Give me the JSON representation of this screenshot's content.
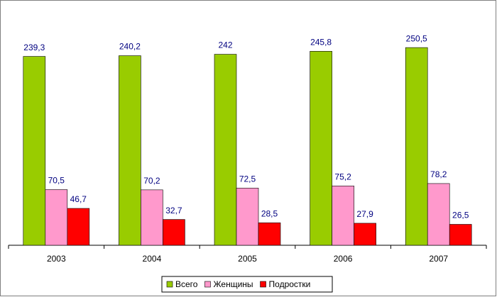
{
  "chart_data": {
    "type": "bar",
    "categories": [
      "2003",
      "2004",
      "2005",
      "2006",
      "2007"
    ],
    "series": [
      {
        "name": "Всего",
        "color": "#99cc00",
        "values": [
          239.3,
          240.2,
          242,
          245.8,
          250.5
        ],
        "value_labels": [
          "239,3",
          "240,2",
          "242",
          "245,8",
          "250,5"
        ]
      },
      {
        "name": "Женщины",
        "color": "#ff99cc",
        "values": [
          70.5,
          70.2,
          72.5,
          75.2,
          78.2
        ],
        "value_labels": [
          "70,5",
          "70,2",
          "72,5",
          "75,2",
          "78,2"
        ]
      },
      {
        "name": "Подростки",
        "color": "#ff0000",
        "values": [
          46.7,
          32.7,
          28.5,
          27.9,
          26.5
        ],
        "value_labels": [
          "46,7",
          "32,7",
          "28,5",
          "27,9",
          "26,5"
        ]
      }
    ],
    "ylim": [
      0,
      300
    ],
    "legend": "bottom"
  }
}
